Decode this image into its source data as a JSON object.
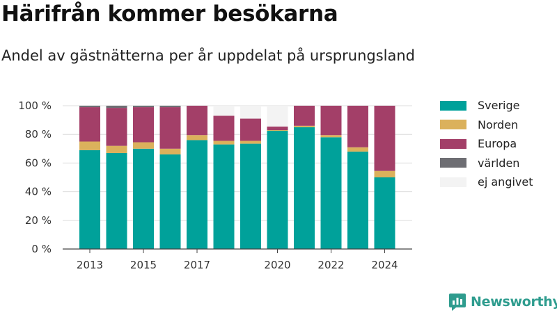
{
  "header": {
    "title": "Härifrån kommer besökarna",
    "subtitle": "Andel av gästnätterna per år uppdelat på ursprungsland"
  },
  "brand": {
    "name": "Newsworthy",
    "icon": "newsworthy-logo-icon",
    "color": "#2e9c8e"
  },
  "chart_data": {
    "type": "bar",
    "stacked": true,
    "categories": [
      "2013",
      "2014",
      "2015",
      "2016",
      "2017",
      "2018",
      "2019",
      "2020",
      "2021",
      "2022",
      "2023",
      "2024"
    ],
    "x_tick_labels": [
      "2013",
      "",
      "2015",
      "",
      "2017",
      "",
      "",
      "2020",
      "",
      "2022",
      "",
      "2024"
    ],
    "y_ticks": [
      "0 %",
      "20 %",
      "40 %",
      "60 %",
      "80 %",
      "100 %"
    ],
    "ylim": [
      0,
      100
    ],
    "grid": true,
    "legend_position": "right",
    "series": [
      {
        "name": "Sverige",
        "color": "#00a19a",
        "values": [
          69,
          67,
          70,
          66,
          76,
          73,
          73.5,
          82.5,
          85,
          78,
          68,
          50
        ]
      },
      {
        "name": "Norden",
        "color": "#dbb15c",
        "values": [
          6,
          5,
          4.5,
          4,
          3.5,
          2.5,
          2,
          0.5,
          1,
          1.5,
          3,
          4.5
        ]
      },
      {
        "name": "Europa",
        "color": "#a33f68",
        "values": [
          24,
          26.5,
          24.5,
          29,
          20.5,
          17.5,
          15.5,
          2.5,
          14,
          20.5,
          29,
          45.5
        ]
      },
      {
        "name": "världen",
        "color": "#6e6e73",
        "values": [
          1,
          1.5,
          1,
          1,
          0,
          0,
          0,
          0,
          0,
          0,
          0,
          0
        ]
      },
      {
        "name": "ej angivet",
        "color": "#f3f3f3",
        "values": [
          0,
          0,
          0,
          0,
          0,
          7,
          9,
          14.5,
          0,
          0,
          0,
          0
        ]
      }
    ]
  }
}
